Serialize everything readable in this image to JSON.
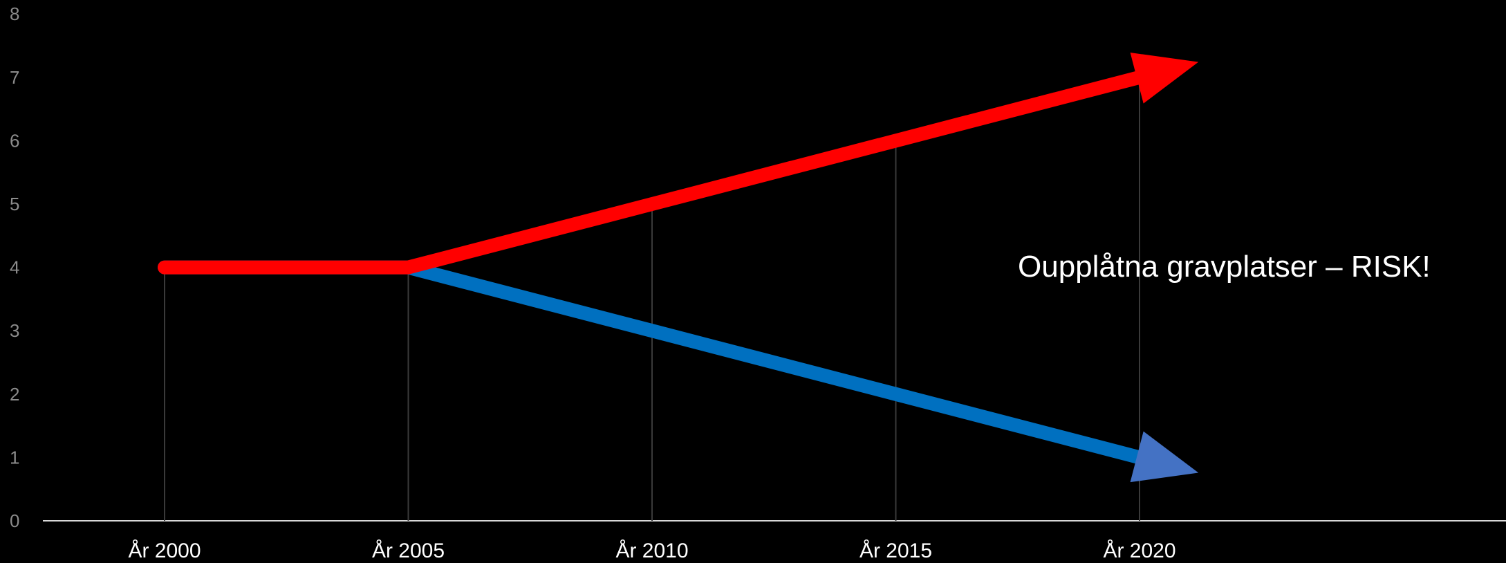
{
  "chart_data": {
    "type": "line",
    "title": "",
    "xlabel": "",
    "ylabel": "",
    "categories": [
      "År 2000",
      "År 2005",
      "År 2010",
      "År 2015",
      "År 2020"
    ],
    "ylim": [
      0,
      8
    ],
    "yticks": [
      "0",
      "1",
      "2",
      "3",
      "4",
      "5",
      "6",
      "7",
      "8"
    ],
    "grid": "vertical lines at categories",
    "legend": "none",
    "series": [
      {
        "values": [
          4,
          4,
          5,
          6,
          7
        ],
        "color": "#ff0000",
        "marker": "arrow"
      },
      {
        "values": [
          4,
          4,
          3,
          2,
          1
        ],
        "color": "#0070c0",
        "arrow_color": "#4472c4",
        "marker": "arrow"
      }
    ],
    "annotations": [
      {
        "text": "Oupplåtna gravplatser – RISK!"
      }
    ]
  }
}
